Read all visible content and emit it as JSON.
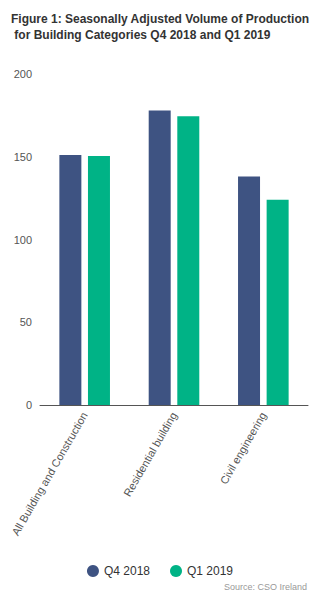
{
  "chart_data": {
    "type": "bar",
    "title": "Figure 1: Seasonally Adjusted Volume of Production for Building Categories Q4 2018 and Q1 2019",
    "source": "Source: CSO Ireland",
    "categories": [
      "All Building and Construction",
      "Residential building",
      "Civil engineering"
    ],
    "series": [
      {
        "name": "Q4 2018",
        "color": "#3e5382",
        "values": [
          151,
          178,
          138
        ]
      },
      {
        "name": "Q1 2019",
        "color": "#00b386",
        "values": [
          150.5,
          174.5,
          124
        ]
      }
    ],
    "ylim": [
      0,
      200
    ],
    "yticks": [
      0,
      50,
      100,
      150,
      200
    ],
    "grid": false,
    "legend": "bottom"
  }
}
